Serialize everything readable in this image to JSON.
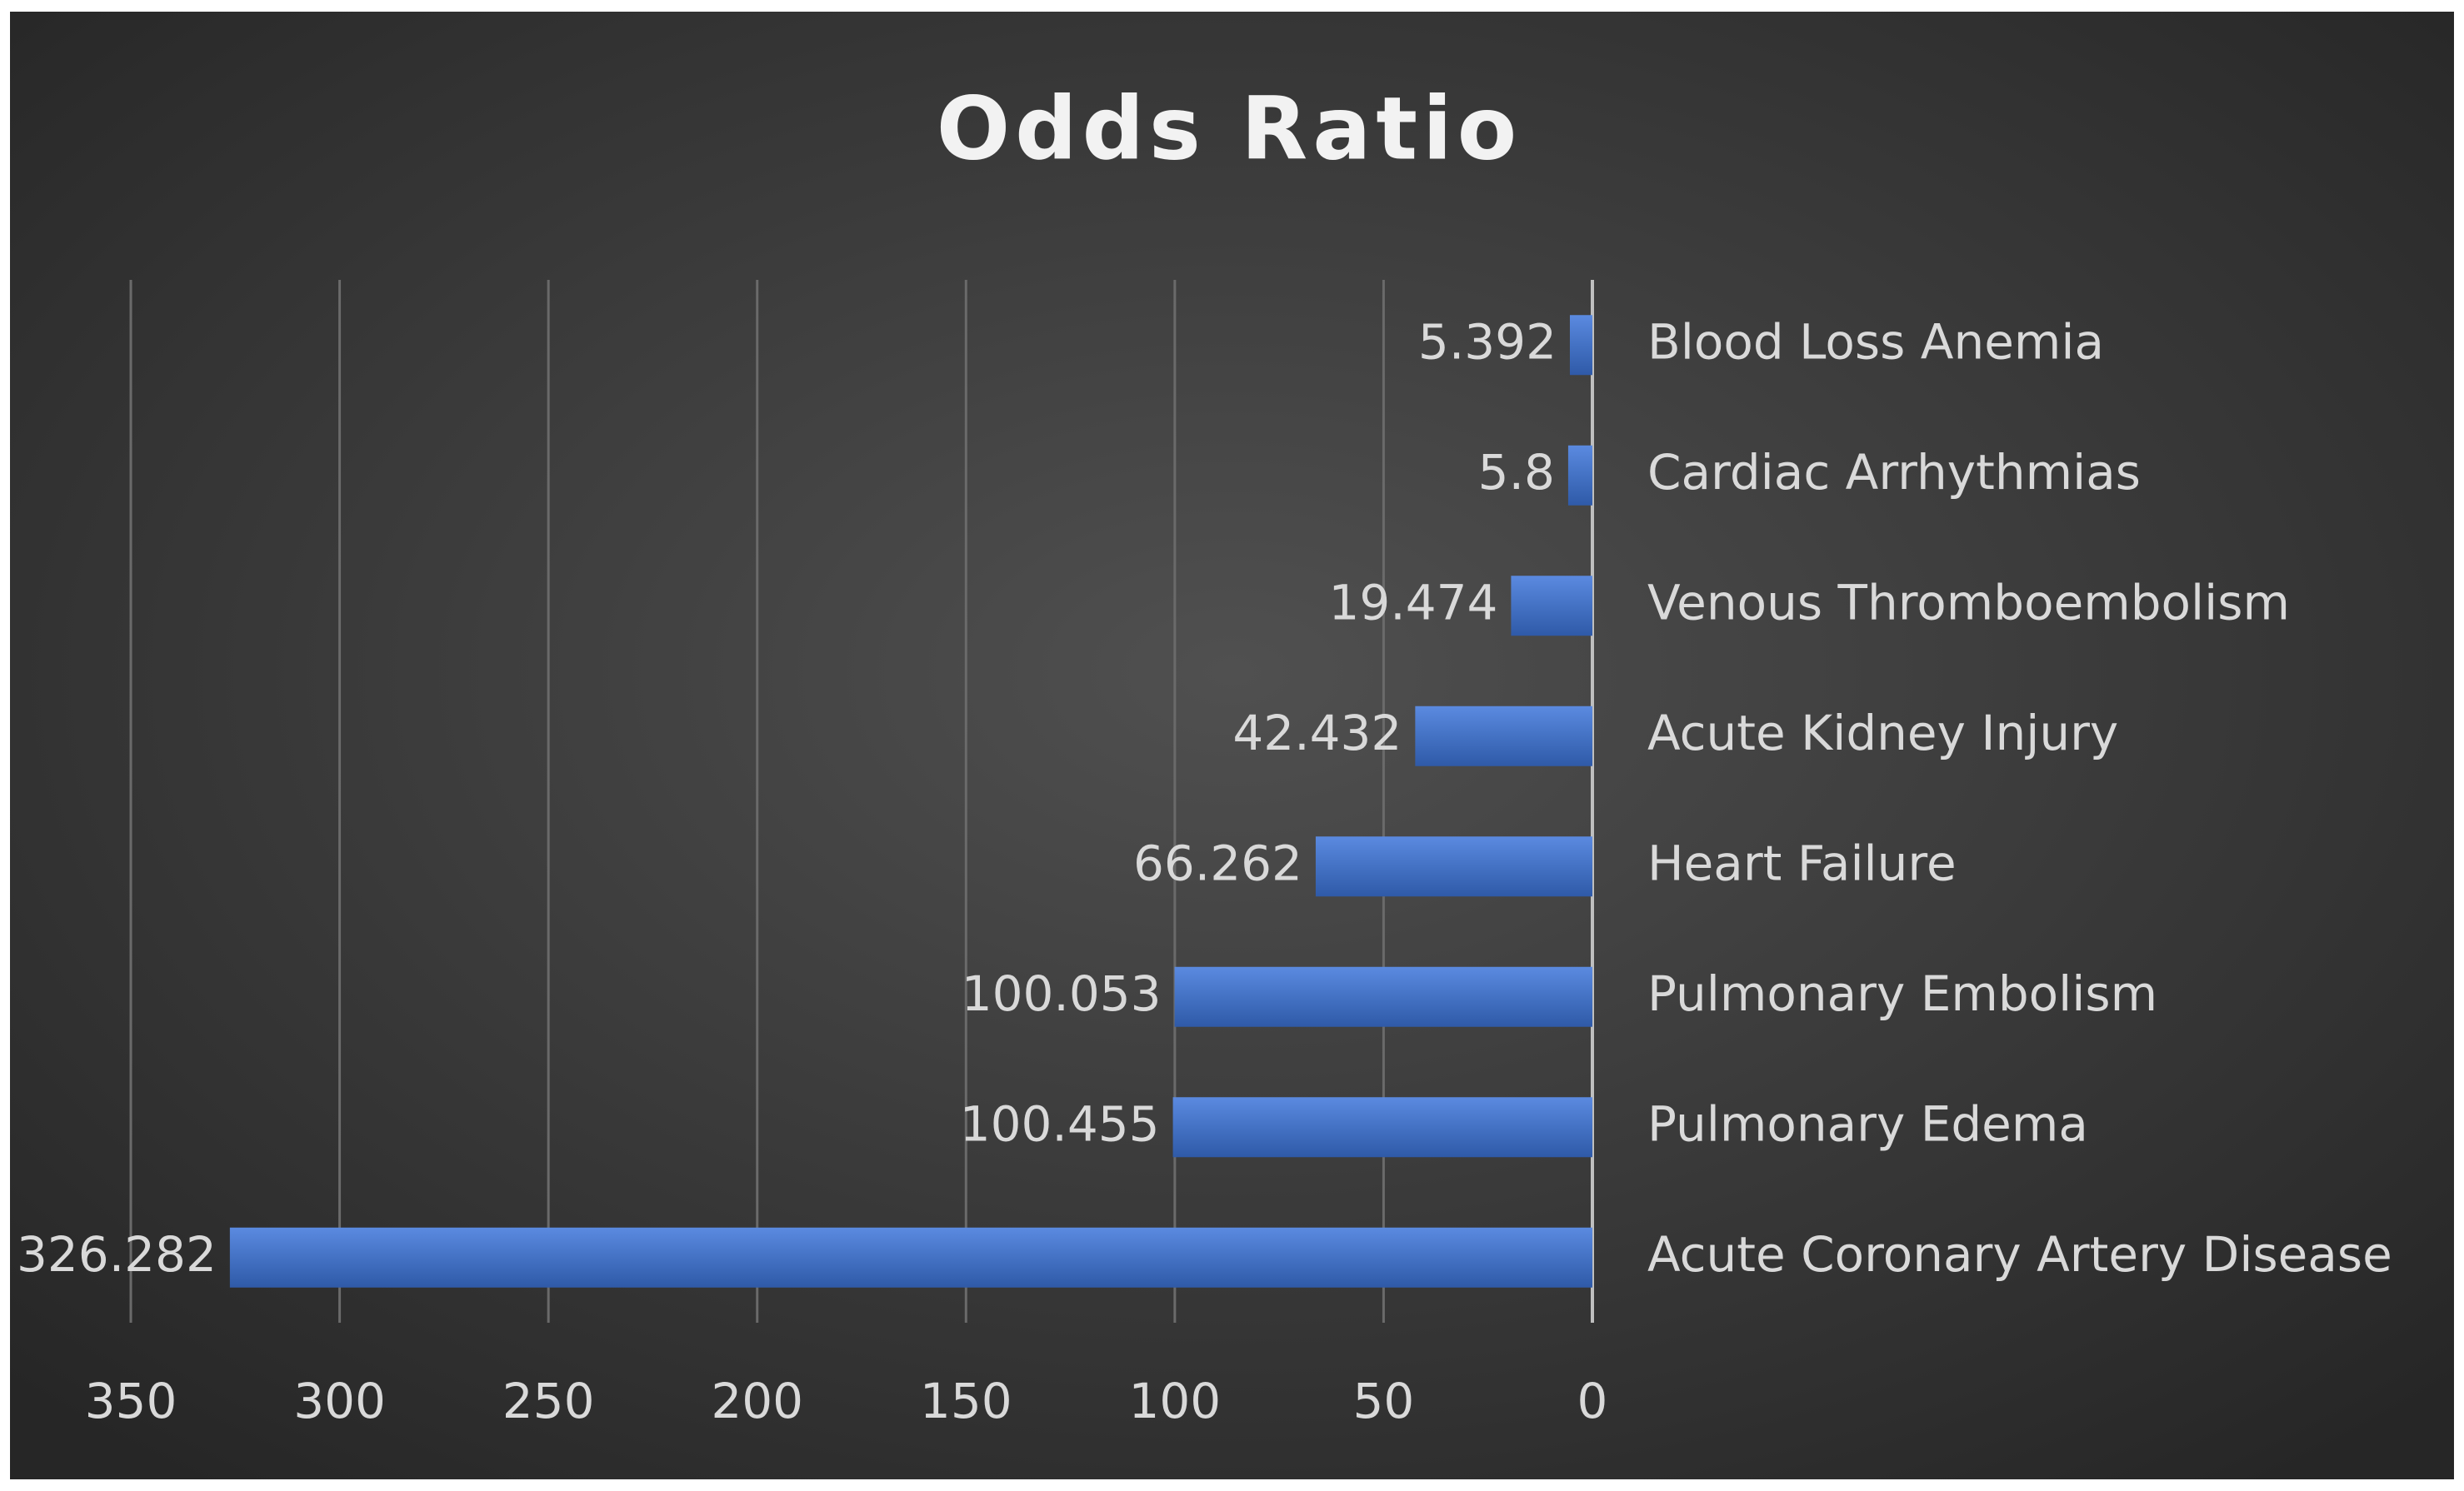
{
  "chart_data": {
    "type": "bar",
    "orientation": "horizontal",
    "title": "Odds Ratio",
    "categories": [
      "Blood Loss Anemia",
      "Cardiac Arrhythmias",
      "Venous Thromboembolism",
      "Acute Kidney Injury",
      "Heart Failure",
      "Pulmonary Embolism",
      "Pulmonary Edema",
      "Acute Coronary Artery Disease"
    ],
    "values": [
      5.392,
      5.8,
      19.474,
      42.432,
      66.262,
      100.053,
      100.455,
      326.282
    ],
    "color": "#4472c4",
    "xlim": [
      350,
      0
    ],
    "xticks": [
      350,
      300,
      250,
      200,
      150,
      100,
      50,
      0
    ],
    "grid": true
  }
}
